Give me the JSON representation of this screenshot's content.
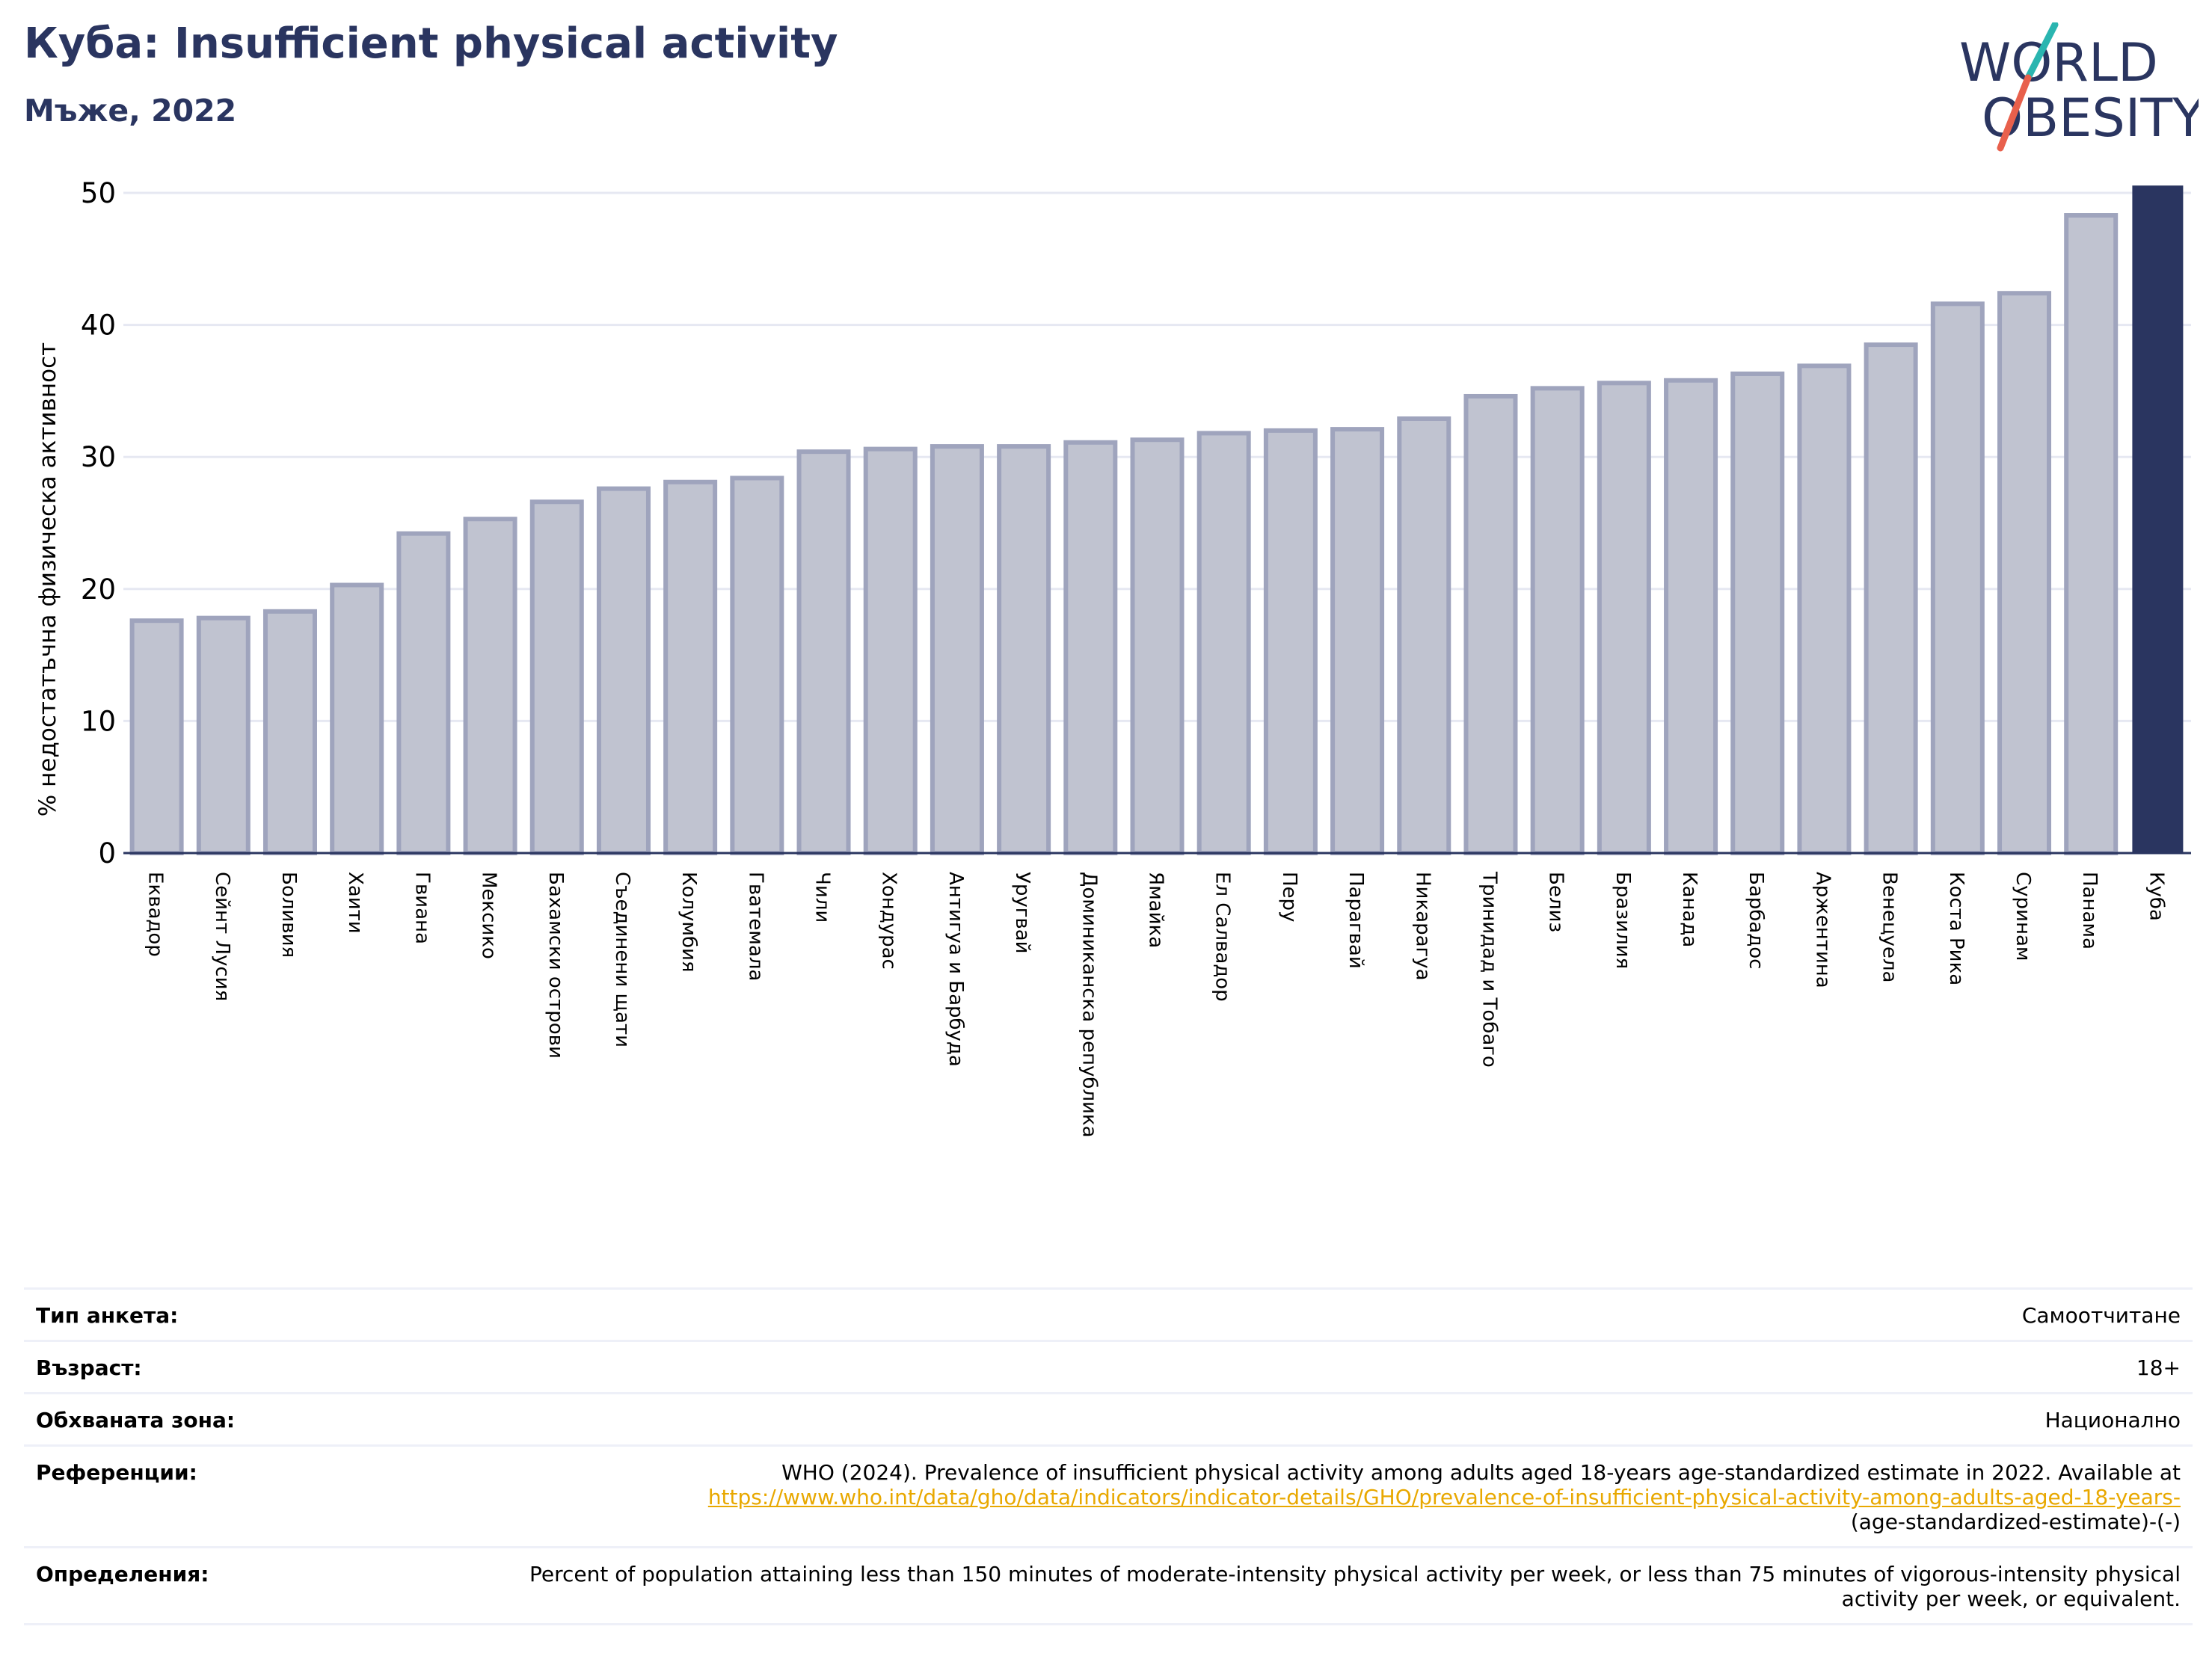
{
  "title": "Куба: Insufficient physical activity",
  "subtitle": "Мъже, 2022",
  "logo": {
    "line1": "WORLD",
    "line2": "OBESITY"
  },
  "chart_data": {
    "type": "bar",
    "ylabel": "% недостатъчна физическа активност",
    "xlabel": "",
    "ylim": [
      0,
      50
    ],
    "yticks": [
      0,
      10,
      20,
      30,
      40,
      50
    ],
    "grid": true,
    "highlight": "Куба",
    "colors": {
      "bar": "#c0c3d0",
      "bar_edge": "#9fa4bd",
      "highlight": "#2a3560",
      "grid": "#e6e8f2"
    },
    "categories": [
      "Еквадор",
      "Сейнт Лусия",
      "Боливия",
      "Хаити",
      "Гвиана",
      "Мексико",
      "Бахамски острови",
      "Съединени щати",
      "Колумбия",
      "Гватемала",
      "Чили",
      "Хондурас",
      "Антигуа и Барбуда",
      "Уругвай",
      "Доминиканска република",
      "Ямайка",
      "Ел Салвадор",
      "Перу",
      "Парагвай",
      "Никарагуа",
      "Тринидад и Тобаго",
      "Белиз",
      "Бразилия",
      "Канада",
      "Барбадос",
      "Аржентина",
      "Венецуела",
      "Коста Рика",
      "Суринам",
      "Панама",
      "Куба"
    ],
    "values": [
      17.6,
      17.8,
      18.3,
      20.3,
      24.2,
      25.3,
      26.6,
      27.6,
      28.1,
      28.4,
      30.4,
      30.6,
      30.8,
      30.8,
      31.1,
      31.3,
      31.8,
      32.0,
      32.1,
      32.9,
      34.6,
      35.2,
      35.6,
      35.8,
      36.3,
      36.9,
      38.5,
      41.6,
      42.4,
      48.3,
      50.5
    ]
  },
  "info": {
    "survey_type": {
      "label": "Тип анкета:",
      "value": "Самоотчитане"
    },
    "age": {
      "label": "Възраст:",
      "value": "18+"
    },
    "coverage": {
      "label": "Обхваната зона:",
      "value": "Национално"
    },
    "references": {
      "label": "Референции:",
      "text": "WHO (2024). Prevalence of insufficient physical activity among adults aged 18-years age-standardized estimate in 2022. Available at",
      "link": "https://www.who.int/data/gho/data/indicators/indicator-details/GHO/prevalence-of-insufficient-physical-activity-among-adults-aged-18-years-",
      "tail": "(age-standardized-estimate)-(-)"
    },
    "definitions": {
      "label": "Определения:",
      "value": "Percent of population attaining less than 150 minutes of moderate-intensity physical activity per week, or less than 75 minutes of vigorous-intensity physical activity per week, or equivalent."
    }
  }
}
